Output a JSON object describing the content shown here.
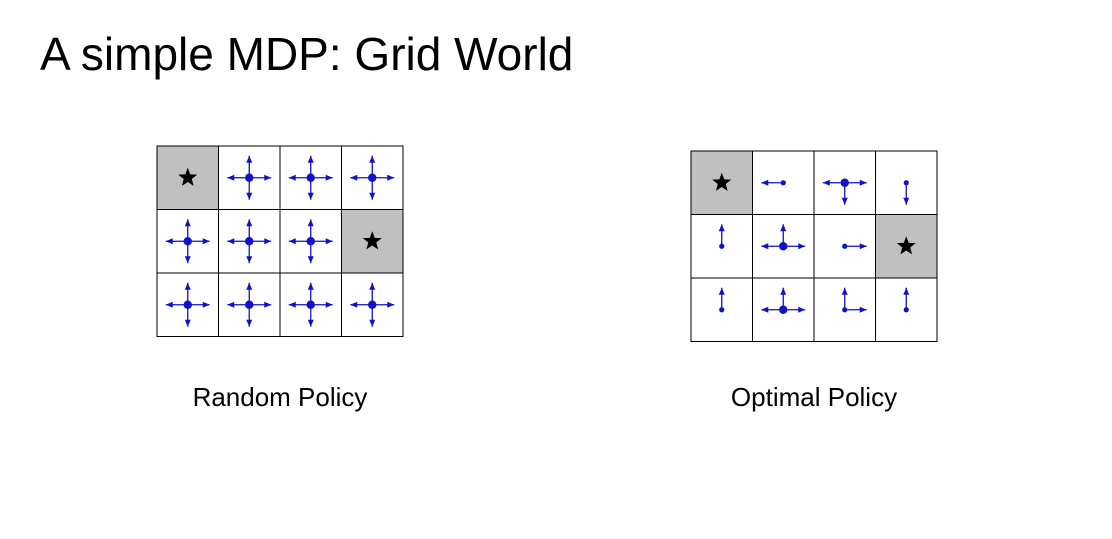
{
  "title": "A simple MDP: Grid World",
  "colors": {
    "arrow": "#1111c8",
    "terminal_fill": "#c0c0c0",
    "grid_line": "#000000",
    "star": "#000000"
  },
  "icons": {
    "terminal": "star-icon",
    "action": "arrow-icon",
    "state": "dot-icon"
  },
  "grids": [
    {
      "name": "random",
      "caption": "Random Policy",
      "rows": 3,
      "cols": 4,
      "cells": [
        [
          {
            "terminal": true
          },
          {
            "actions": [
              "up",
              "down",
              "left",
              "right"
            ]
          },
          {
            "actions": [
              "up",
              "down",
              "left",
              "right"
            ]
          },
          {
            "actions": [
              "up",
              "down",
              "left",
              "right"
            ]
          }
        ],
        [
          {
            "actions": [
              "up",
              "down",
              "left",
              "right"
            ]
          },
          {
            "actions": [
              "up",
              "down",
              "left",
              "right"
            ]
          },
          {
            "actions": [
              "up",
              "down",
              "left",
              "right"
            ]
          },
          {
            "terminal": true
          }
        ],
        [
          {
            "actions": [
              "up",
              "down",
              "left",
              "right"
            ]
          },
          {
            "actions": [
              "up",
              "down",
              "left",
              "right"
            ]
          },
          {
            "actions": [
              "up",
              "down",
              "left",
              "right"
            ]
          },
          {
            "actions": [
              "up",
              "down",
              "left",
              "right"
            ]
          }
        ]
      ]
    },
    {
      "name": "optimal",
      "caption": "Optimal Policy",
      "rows": 3,
      "cols": 4,
      "cells": [
        [
          {
            "terminal": true
          },
          {
            "actions": [
              "left"
            ]
          },
          {
            "actions": [
              "left",
              "right",
              "down"
            ]
          },
          {
            "actions": [
              "down"
            ]
          }
        ],
        [
          {
            "actions": [
              "up"
            ]
          },
          {
            "actions": [
              "up",
              "left",
              "right"
            ]
          },
          {
            "actions": [
              "right"
            ]
          },
          {
            "terminal": true
          }
        ],
        [
          {
            "actions": [
              "up"
            ]
          },
          {
            "actions": [
              "up",
              "left",
              "right"
            ]
          },
          {
            "actions": [
              "up",
              "right"
            ]
          },
          {
            "actions": [
              "up"
            ]
          }
        ]
      ]
    }
  ]
}
